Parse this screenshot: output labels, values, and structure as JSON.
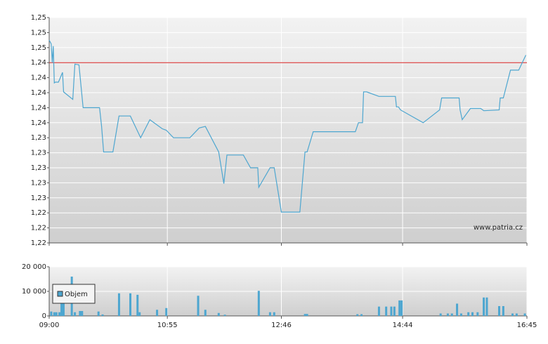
{
  "chart_data": [
    {
      "type": "line",
      "color": "#4da6d0",
      "grid": true,
      "x": [
        0,
        2,
        3,
        4,
        5,
        6,
        9,
        13,
        14,
        23,
        25,
        29,
        33,
        49,
        51,
        53,
        62,
        68,
        79,
        89,
        98,
        110,
        114,
        121,
        137,
        146,
        152,
        165,
        170,
        173,
        189,
        196,
        203,
        204,
        215,
        219,
        226,
        244,
        249,
        251,
        257,
        298,
        301,
        305,
        306,
        309,
        321,
        337,
        338,
        340,
        342,
        364,
        380,
        382,
        399,
        400,
        402,
        410,
        420,
        423,
        438,
        439,
        442,
        449,
        457,
        464
      ],
      "values": [
        1.247,
        1.2465,
        1.244,
        1.2462,
        1.2413,
        1.2414,
        1.2414,
        1.2427,
        1.2401,
        1.2391,
        1.2438,
        1.2437,
        1.238,
        1.238,
        1.2355,
        1.2321,
        1.2321,
        1.2369,
        1.2369,
        1.234,
        1.2364,
        1.2352,
        1.235,
        1.234,
        1.234,
        1.2353,
        1.2355,
        1.2321,
        1.2279,
        1.2317,
        1.2317,
        1.23,
        1.23,
        1.2274,
        1.23,
        1.23,
        1.2241,
        1.2241,
        1.2321,
        1.2321,
        1.2348,
        1.2348,
        1.236,
        1.236,
        1.2401,
        1.2401,
        1.2395,
        1.2395,
        1.2381,
        1.2381,
        1.2377,
        1.236,
        1.2377,
        1.2393,
        1.2393,
        1.2377,
        1.2364,
        1.2379,
        1.2379,
        1.2376,
        1.2377,
        1.2393,
        1.2393,
        1.243,
        1.243,
        1.245
      ],
      "reference_line": 1.244,
      "reference_color": "#d62020",
      "xlim": [
        0,
        465
      ],
      "ylim": [
        1.22,
        1.25
      ],
      "yticks": [
        {
          "value": 1.25,
          "label": "1,25"
        },
        {
          "value": 1.248,
          "label": "1,25"
        },
        {
          "value": 1.246,
          "label": "1,25"
        },
        {
          "value": 1.244,
          "label": "1,24"
        },
        {
          "value": 1.242,
          "label": "1,24"
        },
        {
          "value": 1.24,
          "label": "1,24"
        },
        {
          "value": 1.238,
          "label": "1,24"
        },
        {
          "value": 1.236,
          "label": "1,24"
        },
        {
          "value": 1.234,
          "label": "1,23"
        },
        {
          "value": 1.232,
          "label": "1,23"
        },
        {
          "value": 1.23,
          "label": "1,23"
        },
        {
          "value": 1.228,
          "label": "1,23"
        },
        {
          "value": 1.226,
          "label": "1,23"
        },
        {
          "value": 1.224,
          "label": "1,22"
        },
        {
          "value": 1.222,
          "label": "1,22"
        },
        {
          "value": 1.22,
          "label": "1,22"
        }
      ],
      "annotation": "www.patria.cz"
    },
    {
      "type": "bar",
      "grid": true,
      "legend": "upper left",
      "x": [
        2,
        5,
        7,
        10,
        12,
        14,
        22,
        25,
        30,
        32,
        48,
        52,
        68,
        79,
        86,
        88,
        105,
        114,
        145,
        152,
        165,
        171,
        204,
        215,
        219,
        249,
        251,
        300,
        304,
        321,
        328,
        333,
        336,
        341,
        343,
        381,
        388,
        392,
        397,
        401,
        408,
        412,
        417,
        423,
        426,
        438,
        442,
        451,
        455,
        463
      ],
      "series": [
        {
          "name": "Objem",
          "color": "#4da6d0",
          "values": [
            1800,
            1500,
            1500,
            1500,
            10500,
            11400,
            16000,
            1500,
            2000,
            2000,
            1800,
            600,
            9200,
            9200,
            8600,
            1500,
            2500,
            3200,
            8200,
            2500,
            1200,
            500,
            10200,
            1500,
            1500,
            800,
            800,
            700,
            700,
            3800,
            3800,
            3800,
            3800,
            6300,
            6300,
            1000,
            1000,
            1000,
            5000,
            1000,
            1500,
            1500,
            1500,
            7500,
            7500,
            4000,
            4000,
            1000,
            1000,
            1000
          ]
        }
      ],
      "xlim": [
        0,
        465
      ],
      "ylim": [
        0,
        20000
      ],
      "xticks": [
        {
          "value": 0,
          "label": "09:00"
        },
        {
          "value": 115,
          "label": "10:55"
        },
        {
          "value": 226,
          "label": "12:46"
        },
        {
          "value": 344,
          "label": "14:44"
        },
        {
          "value": 465,
          "label": "16:45"
        }
      ],
      "yticks": [
        0,
        {
          "value": 10000,
          "label": "10 000"
        },
        {
          "value": 20000,
          "label": "20 000"
        }
      ]
    }
  ]
}
